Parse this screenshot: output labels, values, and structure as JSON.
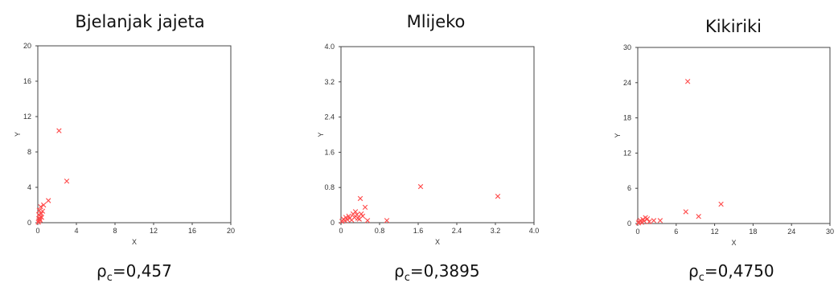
{
  "chart_data": [
    {
      "type": "scatter",
      "title": "Bjelanjak jajeta",
      "xlabel": "X",
      "ylabel": "Y",
      "xlim": [
        0,
        20
      ],
      "ylim": [
        0,
        20
      ],
      "xticks": [
        "0",
        "4",
        "8",
        "12",
        "16",
        "20"
      ],
      "yticks": [
        "0",
        "4",
        "8",
        "12",
        "16",
        "20"
      ],
      "marker_color": "#ff4a4a",
      "points": [
        {
          "x": 0.05,
          "y": 0.05
        },
        {
          "x": 0.1,
          "y": 0.2
        },
        {
          "x": 0.15,
          "y": 0.35
        },
        {
          "x": 0.2,
          "y": 0.5
        },
        {
          "x": 0.25,
          "y": 0.3
        },
        {
          "x": 0.3,
          "y": 0.7
        },
        {
          "x": 0.1,
          "y": 0.9
        },
        {
          "x": 0.35,
          "y": 1.0
        },
        {
          "x": 0.4,
          "y": 0.6
        },
        {
          "x": 0.5,
          "y": 1.3
        },
        {
          "x": 0.6,
          "y": 2.0
        },
        {
          "x": 0.15,
          "y": 1.4
        },
        {
          "x": 0.3,
          "y": 1.8
        },
        {
          "x": 1.1,
          "y": 2.5
        },
        {
          "x": 2.2,
          "y": 10.4
        },
        {
          "x": 3.0,
          "y": 4.7
        }
      ],
      "stat": {
        "symbol": "ρ",
        "subscript": "c",
        "value": "=0,457"
      }
    },
    {
      "type": "scatter",
      "title": "Mlijeko",
      "xlabel": "X",
      "ylabel": "Y",
      "xlim": [
        0,
        4.0
      ],
      "ylim": [
        0,
        4.0
      ],
      "xticks": [
        "0",
        "0.8",
        "1.6",
        "2.4",
        "3.2",
        "4.0"
      ],
      "yticks": [
        "0",
        "0.8",
        "1.6",
        "2.4",
        "3.2",
        "4.0"
      ],
      "marker_color": "#ff4a4a",
      "points": [
        {
          "x": 0.02,
          "y": 0.03
        },
        {
          "x": 0.05,
          "y": 0.08
        },
        {
          "x": 0.08,
          "y": 0.05
        },
        {
          "x": 0.1,
          "y": 0.12
        },
        {
          "x": 0.13,
          "y": 0.07
        },
        {
          "x": 0.16,
          "y": 0.15
        },
        {
          "x": 0.18,
          "y": 0.1
        },
        {
          "x": 0.22,
          "y": 0.06
        },
        {
          "x": 0.25,
          "y": 0.2
        },
        {
          "x": 0.28,
          "y": 0.12
        },
        {
          "x": 0.3,
          "y": 0.25
        },
        {
          "x": 0.33,
          "y": 0.18
        },
        {
          "x": 0.35,
          "y": 0.1
        },
        {
          "x": 0.38,
          "y": 0.08
        },
        {
          "x": 0.4,
          "y": 0.55
        },
        {
          "x": 0.42,
          "y": 0.2
        },
        {
          "x": 0.45,
          "y": 0.15
        },
        {
          "x": 0.5,
          "y": 0.35
        },
        {
          "x": 0.55,
          "y": 0.05
        },
        {
          "x": 0.95,
          "y": 0.05
        },
        {
          "x": 1.65,
          "y": 0.82
        },
        {
          "x": 3.25,
          "y": 0.6
        }
      ],
      "stat": {
        "symbol": "ρ",
        "subscript": "c",
        "value": "=0,3895"
      }
    },
    {
      "type": "scatter",
      "title": "Kikiriki",
      "xlabel": "X",
      "ylabel": "Y",
      "xlim": [
        0,
        30
      ],
      "ylim": [
        0,
        30
      ],
      "xticks": [
        "0",
        "6",
        "12",
        "18",
        "24",
        "30"
      ],
      "yticks": [
        "0",
        "6",
        "12",
        "18",
        "24",
        "30"
      ],
      "marker_color": "#ff4a4a",
      "points": [
        {
          "x": 0.1,
          "y": 0.1
        },
        {
          "x": 0.2,
          "y": 0.3
        },
        {
          "x": 0.4,
          "y": 0.5
        },
        {
          "x": 0.6,
          "y": 0.2
        },
        {
          "x": 0.8,
          "y": 0.7
        },
        {
          "x": 1.0,
          "y": 0.4
        },
        {
          "x": 1.2,
          "y": 1.0
        },
        {
          "x": 1.5,
          "y": 0.8
        },
        {
          "x": 1.8,
          "y": 0.3
        },
        {
          "x": 2.5,
          "y": 0.5
        },
        {
          "x": 3.5,
          "y": 0.5
        },
        {
          "x": 7.5,
          "y": 2.0
        },
        {
          "x": 7.8,
          "y": 24.2
        },
        {
          "x": 9.5,
          "y": 1.2
        },
        {
          "x": 13.0,
          "y": 3.3
        }
      ],
      "stat": {
        "symbol": "ρ",
        "subscript": "c",
        "value": "=0,4750"
      }
    }
  ]
}
